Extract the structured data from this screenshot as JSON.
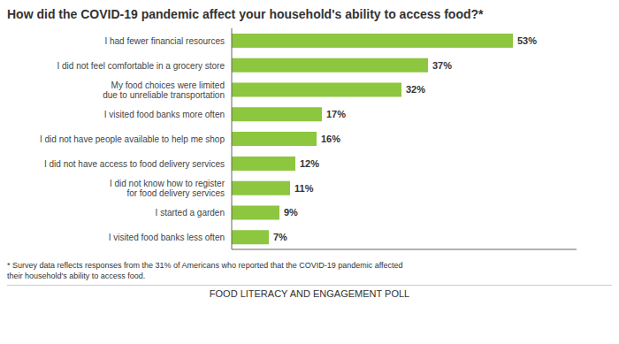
{
  "chart_data": {
    "type": "bar",
    "orientation": "horizontal",
    "title": "How did the COVID-19 pandemic affect your household's ability to access food?*",
    "categories": [
      "I had fewer financial resources",
      "I did not feel comfortable in a grocery store",
      "My food choices were limited\ndue to unreliable transportation",
      "I visited food banks more often",
      "I did not have people available to help me shop",
      "I did not have access to food delivery services",
      "I did not know how to register\nfor food delivery services",
      "I started a garden",
      "I visited food banks less often"
    ],
    "values": [
      53,
      37,
      32,
      17,
      16,
      12,
      11,
      9,
      7
    ],
    "value_labels": [
      "53%",
      "37%",
      "32%",
      "17%",
      "16%",
      "12%",
      "11%",
      "9%",
      "7%"
    ],
    "data_labels": true,
    "color": "#8dc63f",
    "xlim": [
      0,
      65
    ],
    "tick_labels": "y",
    "grid": false,
    "annotations": [
      "* Survey data reflects responses from the 31% of Americans who reported that the COVID-19 pandemic affected\ntheir household's ability to access food.",
      "FOOD LITERACY AND ENGAGEMENT POLL"
    ]
  }
}
